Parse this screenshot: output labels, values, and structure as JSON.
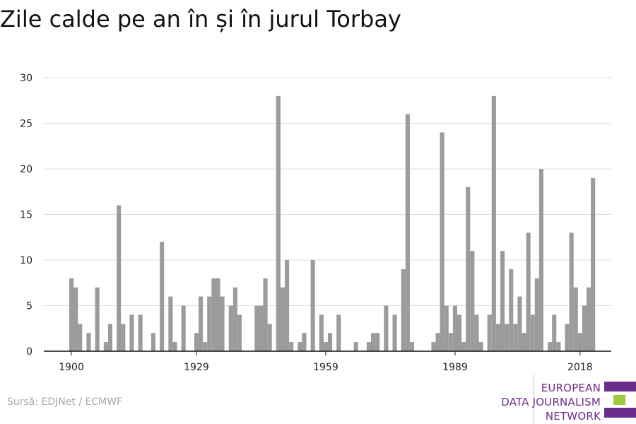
{
  "page": {
    "title": "Zile calde pe an în și în jurul Torbay",
    "source": "Sursă: EDJNet / ECMWF"
  },
  "logo": {
    "lines": [
      "EUROPEAN",
      "DATA JOURNALISM",
      "NETWORK"
    ],
    "text_color": "#6b2d8c",
    "bar_colors": [
      "#6b2d8c",
      "#9ecb3b",
      "#6b2d8c"
    ]
  },
  "chart_data": {
    "type": "bar",
    "title": "Zile calde pe an în și în jurul Torbay",
    "xlabel": "",
    "ylabel": "",
    "x_range": [
      1900,
      2018
    ],
    "ylim": [
      0,
      30
    ],
    "y_ticks": [
      0,
      5,
      10,
      15,
      20,
      25,
      30
    ],
    "x_ticks": [
      1900,
      1929,
      1959,
      1989,
      2018
    ],
    "grid": true,
    "bar_color": "#9b9b9b",
    "values": [
      8,
      7,
      3,
      0,
      2,
      0,
      7,
      0,
      1,
      3,
      0,
      16,
      3,
      0,
      4,
      0,
      4,
      0,
      0,
      2,
      0,
      12,
      0,
      6,
      1,
      0,
      5,
      0,
      0,
      2,
      6,
      1,
      6,
      8,
      8,
      6,
      0,
      5,
      7,
      4,
      0,
      0,
      0,
      5,
      5,
      8,
      3,
      0,
      28,
      7,
      10,
      1,
      0,
      1,
      2,
      0,
      10,
      0,
      4,
      1,
      2,
      0,
      4,
      0,
      0,
      0,
      1,
      0,
      0,
      1,
      2,
      2,
      0,
      5,
      0,
      4,
      0,
      9,
      26,
      1,
      0,
      0,
      0,
      0,
      1,
      2,
      24,
      5,
      2,
      5,
      4,
      1,
      18,
      11,
      4,
      1,
      0,
      4,
      28,
      3,
      11,
      3,
      9,
      3,
      6,
      2,
      13,
      4,
      8,
      20,
      0,
      1,
      4,
      1,
      0,
      3,
      13,
      7,
      2,
      5,
      7,
      19
    ]
  }
}
